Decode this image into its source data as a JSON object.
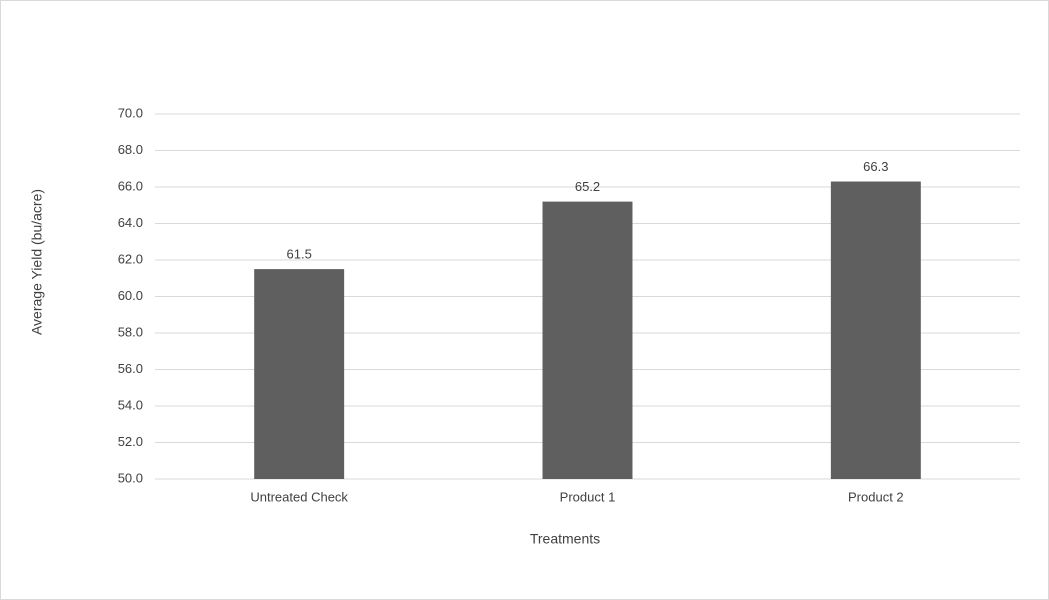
{
  "chart_data": {
    "type": "bar",
    "x_label": "Treatments",
    "y_label": "Average Yield (bu/acre)",
    "categories": [
      "Untreated Check",
      "Product 1",
      "Product 2"
    ],
    "values": [
      61.5,
      65.2,
      66.3
    ],
    "color": "#5f5f5f",
    "ylim": [
      50,
      70
    ],
    "yticks": [
      {
        "value": 50,
        "label": "50.0"
      },
      {
        "value": 52,
        "label": "52.0"
      },
      {
        "value": 54,
        "label": "54.0"
      },
      {
        "value": 56,
        "label": "56.0"
      },
      {
        "value": 58,
        "label": "58.0"
      },
      {
        "value": 60,
        "label": "60.0"
      },
      {
        "value": 62,
        "label": "62.0"
      },
      {
        "value": 64,
        "label": "64.0"
      },
      {
        "value": 66,
        "label": "66.0"
      },
      {
        "value": 68,
        "label": "68.0"
      },
      {
        "value": 70,
        "label": "70.0"
      }
    ],
    "grid": true
  }
}
